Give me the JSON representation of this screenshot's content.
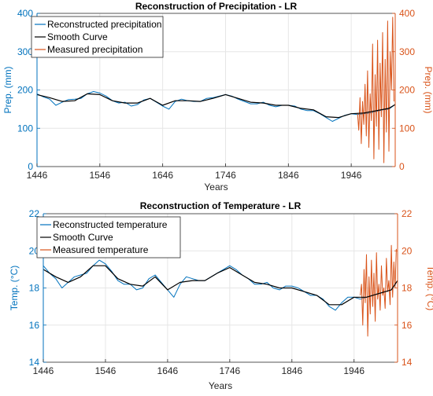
{
  "chart_data": [
    {
      "type": "line",
      "title": "Reconstruction of Precipitation - LR",
      "xlabel": "Years",
      "ylabel_left": "Prep. (mm)",
      "ylabel_right": "Prep. (mm)",
      "xlim": [
        1446,
        2016
      ],
      "ylim_left": [
        0,
        400
      ],
      "ylim_right": [
        0,
        400
      ],
      "x_ticks": [
        "1446",
        "1546",
        "1646",
        "1746",
        "1846",
        "1946"
      ],
      "y_ticks_left": [
        "0",
        "100",
        "200",
        "300",
        "400"
      ],
      "y_ticks_right": [
        "0",
        "100",
        "200",
        "300",
        "400"
      ],
      "grid": true,
      "legend_position": "top-left",
      "colors": {
        "reconstructed": "#0072BD",
        "smooth": "#000000",
        "measured": "#D95319"
      },
      "series": [
        {
          "name": "Reconstructed precipitation",
          "axis": "left",
          "x": [
            1446,
            1456,
            1466,
            1476,
            1486,
            1496,
            1506,
            1516,
            1526,
            1536,
            1546,
            1556,
            1566,
            1576,
            1586,
            1596,
            1606,
            1616,
            1626,
            1636,
            1646,
            1656,
            1666,
            1676,
            1686,
            1696,
            1706,
            1716,
            1726,
            1736,
            1746,
            1756,
            1766,
            1776,
            1786,
            1796,
            1806,
            1816,
            1826,
            1836,
            1846,
            1856,
            1866,
            1876,
            1886,
            1896,
            1906,
            1916,
            1926,
            1936,
            1946,
            1956,
            1966,
            1976,
            1986,
            1996,
            2006,
            2016
          ],
          "values": [
            190,
            182,
            176,
            160,
            168,
            175,
            176,
            178,
            190,
            196,
            192,
            184,
            172,
            166,
            168,
            158,
            162,
            174,
            178,
            168,
            158,
            150,
            170,
            176,
            172,
            170,
            170,
            178,
            180,
            184,
            188,
            184,
            176,
            170,
            164,
            164,
            168,
            160,
            156,
            160,
            160,
            158,
            150,
            146,
            146,
            138,
            128,
            118,
            126,
            134,
            138,
            136,
            138,
            140,
            144,
            148,
            150,
            162
          ]
        },
        {
          "name": "Smooth Curve",
          "axis": "left",
          "x": [
            1446,
            1466,
            1486,
            1506,
            1526,
            1546,
            1566,
            1586,
            1606,
            1626,
            1646,
            1666,
            1686,
            1706,
            1726,
            1746,
            1766,
            1786,
            1806,
            1826,
            1846,
            1866,
            1886,
            1906,
            1926,
            1946,
            1966,
            1986,
            2006,
            2016
          ],
          "values": [
            188,
            180,
            170,
            172,
            190,
            188,
            172,
            166,
            166,
            178,
            160,
            172,
            172,
            170,
            178,
            188,
            178,
            168,
            166,
            160,
            160,
            152,
            148,
            130,
            128,
            138,
            140,
            146,
            152,
            162
          ]
        },
        {
          "name": "Measured precipitation",
          "axis": "right",
          "x": [
            1956,
            1958,
            1960,
            1962,
            1964,
            1966,
            1968,
            1970,
            1972,
            1974,
            1976,
            1978,
            1980,
            1982,
            1984,
            1986,
            1988,
            1990,
            1992,
            1994,
            1996,
            1998,
            2000,
            2002,
            2004,
            2006,
            2008,
            2010,
            2012,
            2014
          ],
          "values": [
            140,
            95,
            180,
            60,
            170,
            110,
            215,
            80,
            250,
            50,
            190,
            120,
            320,
            20,
            240,
            105,
            330,
            45,
            270,
            130,
            350,
            10,
            280,
            90,
            380,
            40,
            300,
            200,
            390,
            170
          ]
        }
      ]
    },
    {
      "type": "line",
      "title": "Reconstruction of Temperature - LR",
      "xlabel": "Years",
      "ylabel_left": "Temp. (°C)",
      "ylabel_right": "Temp. (°C)",
      "xlim": [
        1446,
        2016
      ],
      "ylim_left": [
        14,
        22
      ],
      "ylim_right": [
        14,
        22
      ],
      "x_ticks": [
        "1446",
        "1546",
        "1646",
        "1746",
        "1846",
        "1946"
      ],
      "y_ticks_left": [
        "14",
        "16",
        "18",
        "20",
        "22"
      ],
      "y_ticks_right": [
        "14",
        "16",
        "18",
        "20",
        "22"
      ],
      "grid": true,
      "legend_position": "top-left",
      "colors": {
        "reconstructed": "#0072BD",
        "smooth": "#000000",
        "measured": "#D95319"
      },
      "series": [
        {
          "name": "Reconstructed temperature",
          "axis": "left",
          "x": [
            1446,
            1456,
            1466,
            1476,
            1486,
            1496,
            1506,
            1516,
            1526,
            1536,
            1546,
            1556,
            1566,
            1576,
            1586,
            1596,
            1606,
            1616,
            1626,
            1636,
            1646,
            1656,
            1666,
            1676,
            1686,
            1696,
            1706,
            1716,
            1726,
            1736,
            1746,
            1756,
            1766,
            1776,
            1786,
            1796,
            1806,
            1816,
            1826,
            1836,
            1846,
            1856,
            1866,
            1876,
            1886,
            1896,
            1906,
            1916,
            1926,
            1936,
            1946,
            1956,
            1966,
            1976,
            1986,
            1996,
            2006,
            2016
          ],
          "values": [
            19.2,
            18.8,
            18.5,
            18.0,
            18.3,
            18.6,
            18.7,
            18.8,
            19.2,
            19.5,
            19.3,
            18.9,
            18.4,
            18.2,
            18.2,
            17.9,
            18.0,
            18.5,
            18.7,
            18.3,
            17.9,
            17.5,
            18.2,
            18.6,
            18.5,
            18.4,
            18.4,
            18.6,
            18.8,
            19.0,
            19.2,
            19.0,
            18.7,
            18.5,
            18.2,
            18.2,
            18.3,
            18.0,
            17.9,
            18.1,
            18.1,
            18.0,
            17.8,
            17.6,
            17.6,
            17.4,
            17.0,
            16.8,
            17.2,
            17.5,
            17.5,
            17.4,
            17.5,
            17.6,
            17.7,
            17.8,
            17.9,
            18.4
          ]
        },
        {
          "name": "Smooth Curve",
          "axis": "left",
          "x": [
            1446,
            1466,
            1486,
            1506,
            1526,
            1546,
            1566,
            1586,
            1606,
            1626,
            1646,
            1666,
            1686,
            1706,
            1726,
            1746,
            1766,
            1786,
            1806,
            1826,
            1846,
            1866,
            1886,
            1906,
            1926,
            1946,
            1966,
            1986,
            2006,
            2016
          ],
          "values": [
            19.0,
            18.6,
            18.3,
            18.6,
            19.2,
            19.2,
            18.5,
            18.2,
            18.1,
            18.6,
            17.9,
            18.3,
            18.4,
            18.4,
            18.8,
            19.1,
            18.7,
            18.3,
            18.2,
            18.0,
            18.0,
            17.8,
            17.6,
            17.1,
            17.1,
            17.5,
            17.5,
            17.7,
            17.9,
            18.4
          ]
        },
        {
          "name": "Measured temperature",
          "axis": "right",
          "x": [
            1956,
            1958,
            1960,
            1962,
            1964,
            1966,
            1968,
            1970,
            1972,
            1974,
            1976,
            1978,
            1980,
            1982,
            1984,
            1986,
            1988,
            1990,
            1992,
            1994,
            1996,
            1998,
            2000,
            2002,
            2004,
            2006,
            2008,
            2010,
            2012,
            2014
          ],
          "values": [
            17.6,
            18.2,
            16.0,
            19.0,
            17.2,
            19.8,
            15.4,
            18.6,
            16.6,
            19.5,
            17.0,
            18.8,
            16.2,
            19.9,
            17.4,
            18.2,
            16.8,
            19.2,
            17.6,
            18.0,
            16.9,
            19.6,
            17.8,
            18.4,
            17.1,
            20.3,
            17.5,
            19.4,
            18.0,
            20.1
          ]
        }
      ]
    }
  ]
}
